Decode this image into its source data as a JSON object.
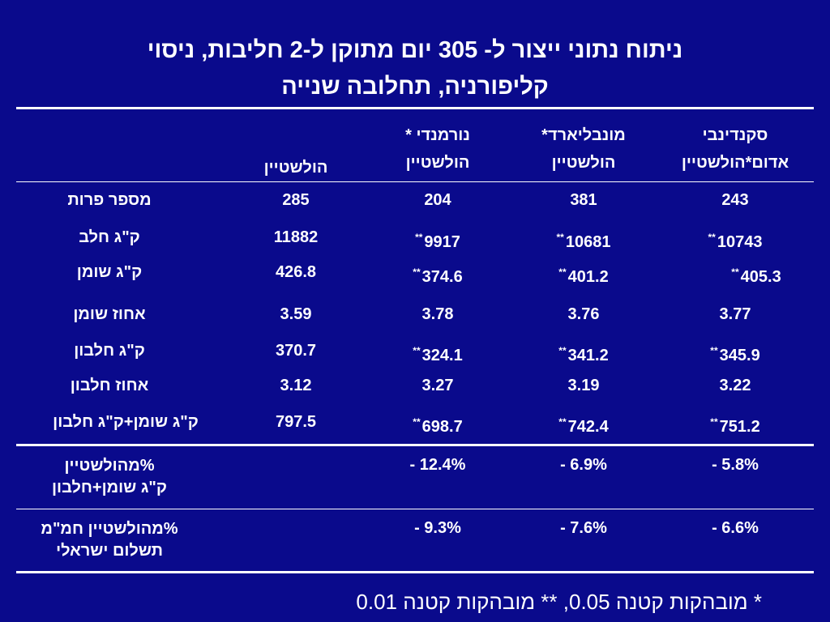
{
  "title": {
    "line1": "ניתוח נתוני ייצור ל- 305 יום מתוקן ל-2 חליבות, ניסוי",
    "line2": "קליפורניה, תחלובה שנייה"
  },
  "columns": {
    "holstein": "הולשטיין",
    "normande": "נורמנדי * הולשטיין",
    "montbeliarde": "מונבליארד* הולשטיין",
    "scandinavian": "סקנדינבי אדום*הולשטיין"
  },
  "rows": [
    {
      "label": "מספר פרות",
      "holstein": "285",
      "normande": "204",
      "montbeliarde": "381",
      "scandinavian": "243",
      "sig_n": "",
      "sig_m": "",
      "sig_s": ""
    },
    {
      "label": "ק\"ג חלב",
      "holstein": "11882",
      "normande": "9917",
      "montbeliarde": "10681",
      "scandinavian": "10743",
      "sig_n": "**",
      "sig_m": "**",
      "sig_s": "**"
    },
    {
      "label": "ק\"ג שומן",
      "holstein": "426.8",
      "normande": "374.6",
      "montbeliarde": "401.2",
      "scandinavian": "405.3",
      "sig_n": "**",
      "sig_m": "**",
      "sig_s": "**"
    },
    {
      "label": "אחוז שומן",
      "holstein": "3.59",
      "normande": "3.78",
      "montbeliarde": "3.76",
      "scandinavian": "3.77",
      "sig_n": "",
      "sig_m": "",
      "sig_s": ""
    },
    {
      "label": "ק\"ג חלבון",
      "holstein": "370.7",
      "normande": "324.1",
      "montbeliarde": "341.2",
      "scandinavian": "345.9",
      "sig_n": "**",
      "sig_m": "**",
      "sig_s": "**"
    },
    {
      "label": "אחוז חלבון",
      "holstein": "3.12",
      "normande": "3.27",
      "montbeliarde": "3.19",
      "scandinavian": "3.22",
      "sig_n": "",
      "sig_m": "",
      "sig_s": ""
    },
    {
      "label": "ק\"ג שומן+ק\"ג חלבון",
      "holstein": "797.5",
      "normande": "698.7",
      "montbeliarde": "742.4",
      "scandinavian": "751.2",
      "sig_n": "**",
      "sig_m": "**",
      "sig_s": "**"
    }
  ],
  "pct_rows": [
    {
      "label_line1": "%מהולשטיין",
      "label_line2": "ק\"ג שומן+חלבון",
      "normande": "- 12.4%",
      "montbeliarde": "- 6.9%",
      "scandinavian": "- 5.8%"
    },
    {
      "label_line1": "%מהולשטיין חמ\"מ",
      "label_line2": "תשלום ישראלי",
      "normande": "- 9.3%",
      "montbeliarde": "- 7.6%",
      "scandinavian": "- 6.6%"
    }
  ],
  "footnote": "* מובהקות קטנה 0.05, ** מובהקות קטנה 0.01"
}
